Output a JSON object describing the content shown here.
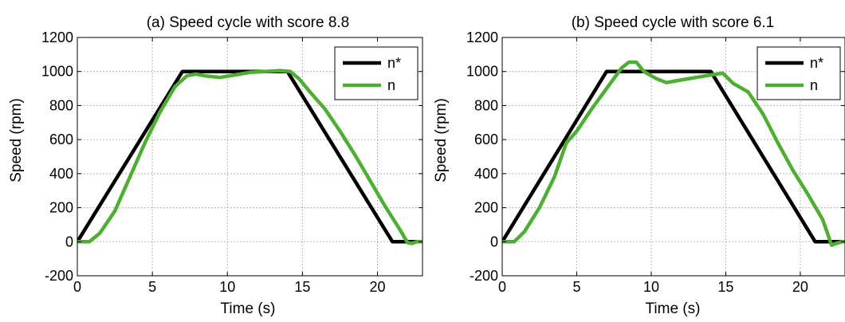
{
  "chart_data": [
    {
      "type": "line",
      "title": "(a) Speed cycle with score 8.8",
      "xlabel": "Time (s)",
      "ylabel": "Speed (rpm)",
      "xlim": [
        0,
        23
      ],
      "ylim": [
        -200,
        1200
      ],
      "xticks": [
        0,
        5,
        10,
        15,
        20
      ],
      "yticks": [
        -200,
        0,
        200,
        400,
        600,
        800,
        1000,
        1200
      ],
      "grid": true,
      "legend_position": "top-right",
      "series": [
        {
          "name": "n*",
          "color": "#000000",
          "x": [
            0,
            7,
            14,
            21,
            22,
            23
          ],
          "y": [
            0,
            1000,
            1000,
            0,
            0,
            0
          ]
        },
        {
          "name": "n",
          "color": "#4caf32",
          "x": [
            0,
            0.8,
            1.5,
            2.5,
            3.5,
            4.5,
            5.5,
            6.5,
            7.3,
            7.9,
            8.5,
            9.5,
            10.5,
            11.5,
            12.5,
            13.5,
            14.2,
            14.8,
            15.5,
            16.5,
            17.5,
            18.5,
            19.5,
            20.5,
            21.5,
            22.0,
            22.3,
            22.6,
            23
          ],
          "y": [
            0,
            0,
            50,
            180,
            380,
            580,
            760,
            910,
            975,
            985,
            975,
            965,
            980,
            995,
            1000,
            1005,
            1000,
            955,
            880,
            780,
            650,
            510,
            360,
            210,
            70,
            -5,
            -10,
            0,
            0
          ]
        }
      ]
    },
    {
      "type": "line",
      "title": "(b) Speed cycle with score 6.1",
      "xlabel": "Time (s)",
      "ylabel": "Speed (rpm)",
      "xlim": [
        0,
        23
      ],
      "ylim": [
        -200,
        1200
      ],
      "xticks": [
        0,
        5,
        10,
        15,
        20
      ],
      "yticks": [
        -200,
        0,
        200,
        400,
        600,
        800,
        1000,
        1200
      ],
      "grid": true,
      "legend_position": "top-right",
      "series": [
        {
          "name": "n*",
          "color": "#000000",
          "x": [
            0,
            7,
            14,
            21,
            22,
            23
          ],
          "y": [
            0,
            1000,
            1000,
            0,
            0,
            0
          ]
        },
        {
          "name": "n",
          "color": "#4caf32",
          "x": [
            0,
            0.8,
            1.5,
            2.5,
            3.5,
            4.3,
            5.0,
            6.0,
            7.0,
            8.0,
            8.5,
            9.0,
            9.5,
            10.3,
            11.0,
            12.0,
            13.0,
            14.0,
            14.8,
            15.5,
            16.5,
            17.5,
            18.5,
            19.5,
            20.5,
            21.5,
            22.1,
            22.4,
            22.8,
            23
          ],
          "y": [
            0,
            0,
            60,
            200,
            380,
            580,
            650,
            780,
            900,
            1020,
            1055,
            1055,
            1000,
            960,
            935,
            950,
            965,
            980,
            990,
            930,
            880,
            750,
            580,
            420,
            280,
            130,
            -20,
            -10,
            0,
            0
          ]
        }
      ]
    }
  ]
}
